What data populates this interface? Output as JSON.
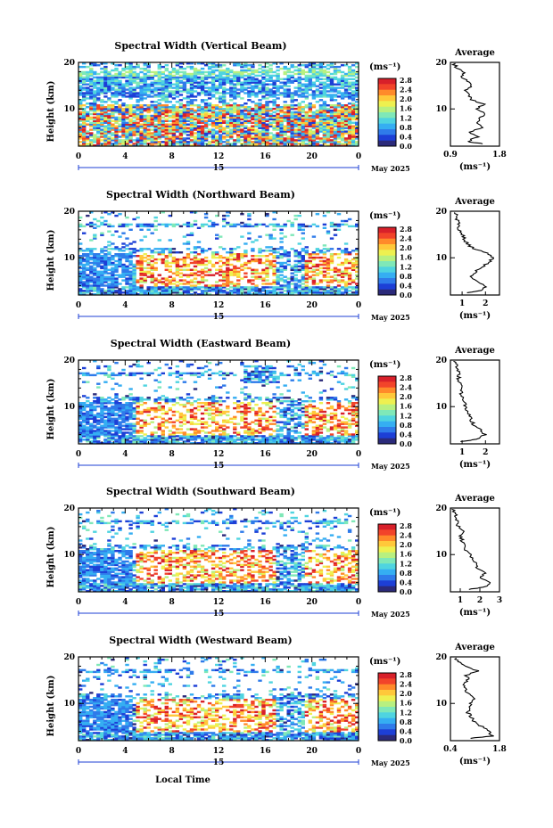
{
  "figure": {
    "xlabel": "Local Time",
    "average_title": "Average",
    "date_label": "May 2025",
    "day_label": "15",
    "units_label": "(ms⁻¹)",
    "height_label": "Height (km)",
    "time_ticks": [
      "0",
      "4",
      "8",
      "12",
      "16",
      "20",
      "0"
    ],
    "height_ticks": [
      "20",
      "10"
    ],
    "colorbar_ticks": [
      "2.8",
      "2.4",
      "2.0",
      "1.6",
      "1.2",
      "0.8",
      "0.4",
      "0.0"
    ],
    "colorscale": [
      "#2b2a7a",
      "#1d3fd6",
      "#2f7bea",
      "#35aef2",
      "#4fd4e0",
      "#7fe8b8",
      "#b8f080",
      "#eef050",
      "#ffc83a",
      "#ff8a2a",
      "#f2442a",
      "#d8202a"
    ],
    "avg_line_color": "#000000"
  },
  "chart_data": [
    {
      "type": "heatmap",
      "title": "Spectral Width (Vertical Beam)",
      "xlabel": "Local Time",
      "ylabel": "Height (km)",
      "xlim": [
        0,
        24
      ],
      "ylim": [
        2,
        20
      ],
      "color_range": [
        0.0,
        3.0
      ],
      "average": {
        "title": "Average",
        "xlabel": "(ms⁻¹)",
        "xlim": [
          0.9,
          1.8
        ],
        "xticks": [
          "0.9",
          "1.8"
        ],
        "height": [
          2.5,
          3,
          4,
          5,
          6,
          7,
          8,
          9,
          10,
          11,
          12,
          13,
          14,
          15,
          16,
          17,
          18,
          19,
          20
        ],
        "values": [
          1.5,
          1.2,
          1.4,
          1.25,
          1.5,
          1.35,
          1.45,
          1.55,
          1.4,
          1.5,
          1.3,
          1.25,
          1.15,
          1.3,
          1.2,
          1.1,
          1.15,
          1.0,
          0.95
        ]
      }
    },
    {
      "type": "heatmap",
      "title": "Spectral Width (Northward Beam)",
      "xlabel": "Local Time",
      "ylabel": "Height (km)",
      "xlim": [
        0,
        24
      ],
      "ylim": [
        2,
        20
      ],
      "color_range": [
        0.0,
        3.0
      ],
      "average": {
        "title": "Average",
        "xlabel": "(ms⁻¹)",
        "xlim": [
          0.5,
          2.6
        ],
        "xticks": [
          "1",
          "2"
        ],
        "height": [
          2.5,
          3,
          4,
          5,
          6,
          7,
          8,
          9,
          10,
          11,
          12,
          13,
          14,
          15,
          16,
          17,
          18,
          19,
          20
        ],
        "values": [
          1.2,
          1.8,
          2.0,
          1.6,
          1.4,
          1.6,
          1.8,
          2.2,
          2.3,
          2.1,
          1.5,
          1.2,
          1.1,
          1.0,
          0.9,
          0.85,
          0.8,
          0.75,
          0.7
        ]
      }
    },
    {
      "type": "heatmap",
      "title": "Spectral Width (Eastward Beam)",
      "xlabel": "Local Time",
      "ylabel": "Height (km)",
      "xlim": [
        0,
        24
      ],
      "ylim": [
        2,
        20
      ],
      "color_range": [
        0.0,
        3.0
      ],
      "average": {
        "title": "Average",
        "xlabel": "(ms⁻¹)",
        "xlim": [
          0.5,
          2.6
        ],
        "xticks": [
          "1",
          "2"
        ],
        "height": [
          2.5,
          3,
          4,
          5,
          6,
          7,
          8,
          9,
          10,
          11,
          12,
          13,
          14,
          15,
          16,
          17,
          18,
          19,
          20
        ],
        "values": [
          1.0,
          1.6,
          2.0,
          1.8,
          1.5,
          1.4,
          1.3,
          1.2,
          1.1,
          1.15,
          1.0,
          0.95,
          1.0,
          0.9,
          0.85,
          0.9,
          0.8,
          0.75,
          0.7
        ]
      }
    },
    {
      "type": "heatmap",
      "title": "Spectral Width (Southward Beam)",
      "xlabel": "Local Time",
      "ylabel": "Height (km)",
      "xlim": [
        0,
        24
      ],
      "ylim": [
        2,
        20
      ],
      "color_range": [
        0.0,
        3.0
      ],
      "average": {
        "title": "Average",
        "xlabel": "(ms⁻¹)",
        "xlim": [
          0.5,
          3.0
        ],
        "xticks": [
          "1",
          "2",
          "3"
        ],
        "height": [
          2.5,
          3,
          4,
          5,
          6,
          7,
          8,
          9,
          10,
          11,
          12,
          13,
          14,
          15,
          16,
          17,
          18,
          19,
          20
        ],
        "values": [
          1.4,
          2.2,
          2.6,
          2.0,
          2.3,
          1.8,
          1.9,
          1.6,
          1.5,
          1.3,
          1.2,
          1.1,
          1.0,
          1.1,
          0.9,
          0.85,
          0.8,
          0.7,
          0.65
        ]
      }
    },
    {
      "type": "heatmap",
      "title": "Spectral Width (Westward Beam)",
      "xlabel": "Local Time",
      "ylabel": "Height (km)",
      "xlim": [
        0,
        24
      ],
      "ylim": [
        2,
        20
      ],
      "color_range": [
        0.0,
        3.0
      ],
      "average": {
        "title": "Average",
        "xlabel": "(ms⁻¹)",
        "xlim": [
          0.4,
          1.8
        ],
        "xticks": [
          "0.4",
          "1.8"
        ],
        "height": [
          2.5,
          3,
          4,
          5,
          6,
          7,
          8,
          9,
          10,
          11,
          12,
          13,
          14,
          15,
          16,
          17,
          18,
          19,
          20
        ],
        "values": [
          1.0,
          1.6,
          1.5,
          1.3,
          1.1,
          1.0,
          0.9,
          0.95,
          1.0,
          1.05,
          0.9,
          0.85,
          0.8,
          0.9,
          0.85,
          1.2,
          0.8,
          0.6,
          0.55
        ]
      }
    }
  ]
}
